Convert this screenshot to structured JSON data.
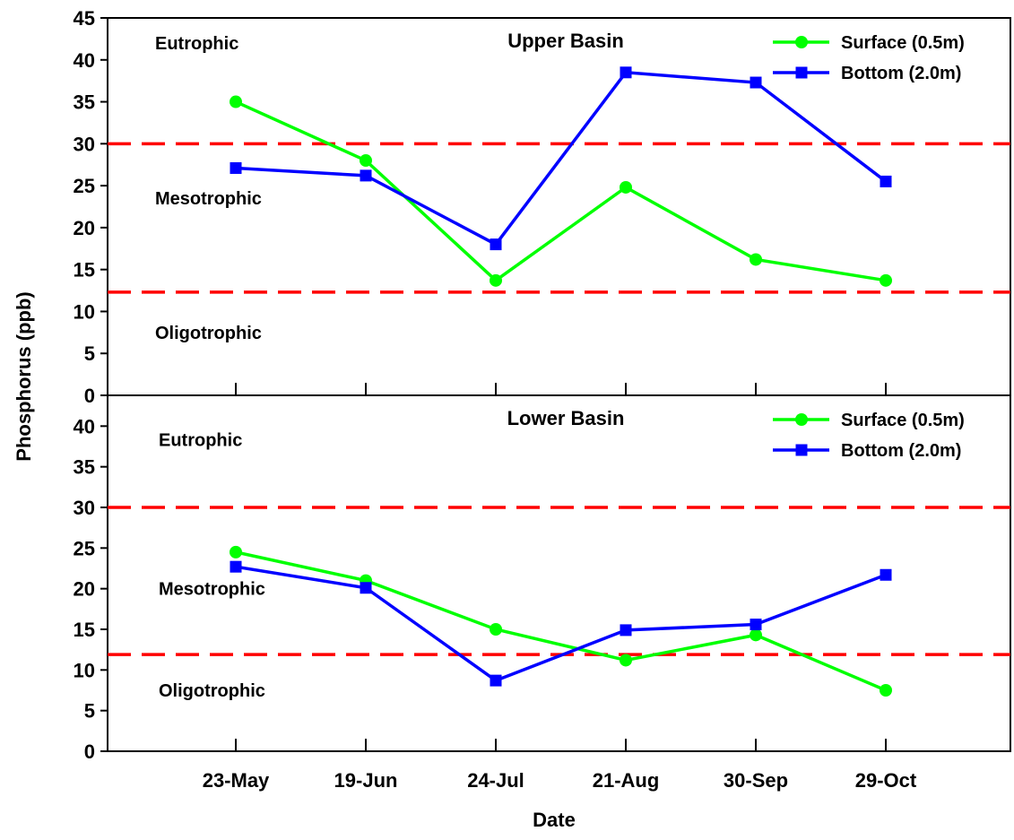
{
  "chart_data": {
    "type": "line",
    "xlabel": "Date",
    "ylabel": "Phosphorus (ppb)",
    "categories": [
      "23-May",
      "19-Jun",
      "24-Jul",
      "21-Aug",
      "30-Sep",
      "29-Oct"
    ],
    "ylim": [
      0,
      45
    ],
    "grid": false,
    "legend_position": "top-right",
    "reference_lines": [
      30,
      12
    ],
    "panels": [
      {
        "title": "Upper Basin",
        "ylim": [
          0,
          45
        ],
        "yticks": [
          0,
          5,
          10,
          15,
          20,
          25,
          30,
          35,
          40,
          45
        ],
        "zones": [
          {
            "label": "Eutrophic",
            "y": 42
          },
          {
            "label": "Mesotrophic",
            "y": 23.5
          },
          {
            "label": "Oligotrophic",
            "y": 7.5
          }
        ],
        "reference_lines": [
          30,
          12.3
        ],
        "series": [
          {
            "name": "Surface (0.5m)",
            "color": "#00ff00",
            "marker": "circle",
            "values": [
              35,
              28,
              13.7,
              24.8,
              16.2,
              13.7
            ]
          },
          {
            "name": "Bottom (2.0m)",
            "color": "#0000ff",
            "marker": "square",
            "values": [
              27.1,
              26.2,
              18,
              38.5,
              37.3,
              25.5
            ]
          }
        ]
      },
      {
        "title": "Lower Basin",
        "ylim": [
          0,
          45
        ],
        "yticks": [
          0,
          5,
          10,
          15,
          20,
          25,
          30,
          35,
          40
        ],
        "zones": [
          {
            "label": "Eutrophic",
            "y": 38.3
          },
          {
            "label": "Mesotrophic",
            "y": 20
          },
          {
            "label": "Oligotrophic",
            "y": 7.5
          }
        ],
        "reference_lines": [
          30,
          11.9
        ],
        "series": [
          {
            "name": "Surface (0.5m)",
            "color": "#00ff00",
            "marker": "circle",
            "values": [
              24.5,
              21,
              15,
              11.2,
              14.3,
              7.5
            ]
          },
          {
            "name": "Bottom (2.0m)",
            "color": "#0000ff",
            "marker": "square",
            "values": [
              22.7,
              20.1,
              8.7,
              14.9,
              15.6,
              21.7
            ]
          }
        ]
      }
    ]
  },
  "colors": {
    "surface": "#00ff00",
    "bottom": "#0000ff",
    "reference_line": "#ff0000",
    "axis": "#000000"
  }
}
